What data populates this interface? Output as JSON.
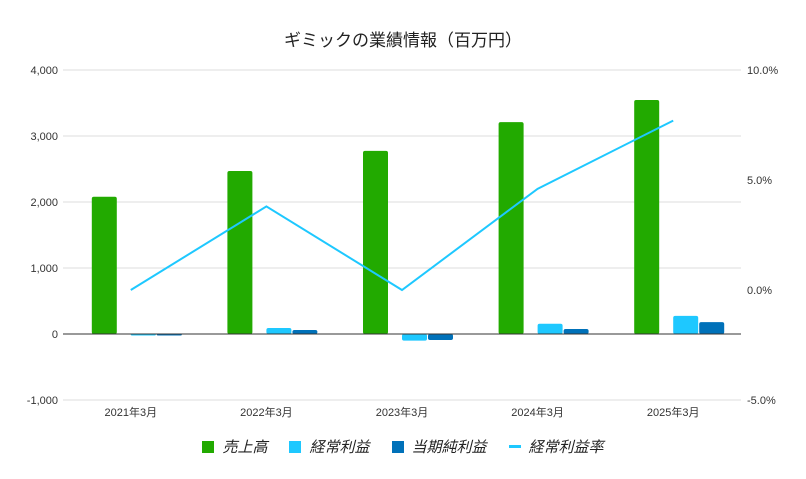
{
  "chart_data": {
    "type": "bar+line",
    "title": "ギミックの業績情報（百万円）",
    "categories": [
      "2021年3月",
      "2022年3月",
      "2023年3月",
      "2024年3月",
      "2025年3月"
    ],
    "series": [
      {
        "name": "売上高",
        "type": "bar",
        "axis": "left",
        "color": "#22aa00",
        "values": [
          2080,
          2470,
          2775,
          3210,
          3545
        ]
      },
      {
        "name": "経常利益",
        "type": "bar",
        "axis": "left",
        "color": "#1ec8ff",
        "values": [
          -20,
          90,
          -100,
          155,
          275
        ]
      },
      {
        "name": "当期純利益",
        "type": "bar",
        "axis": "left",
        "color": "#0071b9",
        "values": [
          -20,
          60,
          -90,
          75,
          180
        ]
      },
      {
        "name": "経常利益率",
        "type": "line",
        "axis": "right",
        "color": "#1ec8ff",
        "values": [
          0.0,
          3.8,
          0.0,
          4.6,
          7.7
        ]
      }
    ],
    "y_left": {
      "ylim": [
        -1000,
        4000
      ],
      "ticks": [
        "-1,000",
        "0",
        "1,000",
        "2,000",
        "3,000",
        "4,000"
      ],
      "tick_values": [
        -1000,
        0,
        1000,
        2000,
        3000,
        4000
      ]
    },
    "y_right": {
      "ylim": [
        -5,
        10
      ],
      "ticks": [
        "-5.0%",
        "0.0%",
        "5.0%",
        "10.0%"
      ],
      "tick_values": [
        -5,
        0,
        5,
        10
      ]
    },
    "grid": true,
    "legend_position": "bottom"
  }
}
